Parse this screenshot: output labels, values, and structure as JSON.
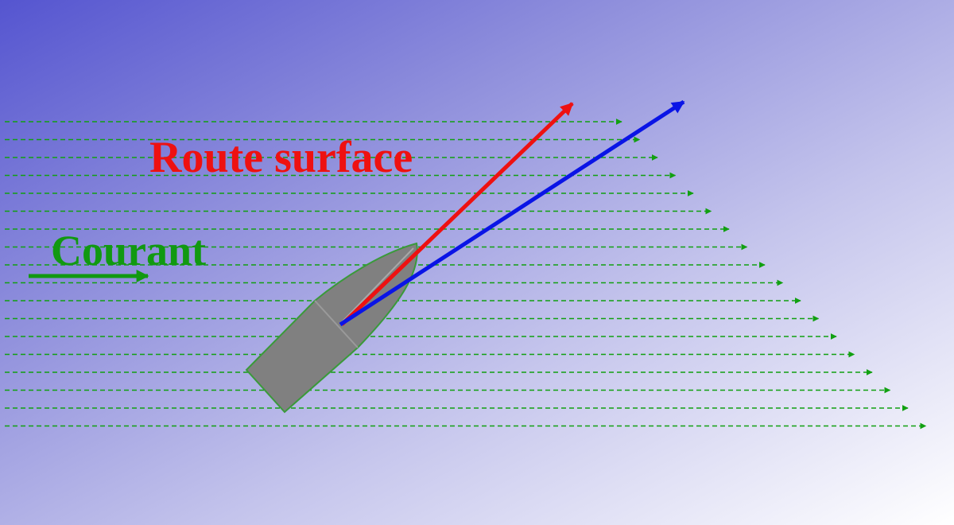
{
  "labels": {
    "route": "Route surface",
    "current": "Courant"
  },
  "colors": {
    "route": "#ee1111",
    "current": "#119911",
    "heading": "#0a14e6",
    "hull": "#808080",
    "hull_outline": "#3a9a3a",
    "stream": "#11a011"
  },
  "icons": {
    "boat": "boat-hull-icon",
    "current_arrow": "arrow-right-icon"
  }
}
